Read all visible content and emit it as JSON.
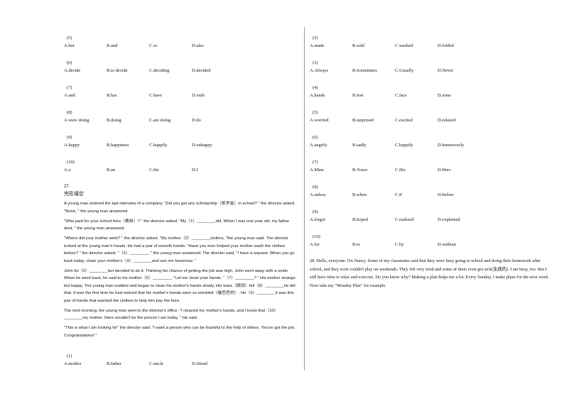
{
  "left_questions": [
    {
      "num": "(5)",
      "options": [
        "A.but",
        "B.and",
        "C.or",
        "D.also"
      ]
    },
    {
      "num": "(6)",
      "options": [
        "A.decide",
        "B.to decide",
        "C.deciding",
        "D.decided"
      ]
    },
    {
      "num": "(7)",
      "options": [
        "A.and",
        "B.has",
        "C.have",
        "D.with"
      ]
    },
    {
      "num": "(8)",
      "options": [
        "A.were doing",
        "B.doing",
        "C.are doing",
        "D.do"
      ]
    },
    {
      "num": "(9)",
      "options": [
        "A.happy",
        "B.happiness",
        "C.happily",
        "D.unhappy"
      ]
    },
    {
      "num": "(10)",
      "options": [
        "A.a",
        "B.an",
        "C.the",
        "D.I"
      ]
    }
  ],
  "q27": {
    "number": "27.",
    "title": "完形填空",
    "paragraphs": [
      "A young man entered the last interview of a company. \"Did you get any scholarship（奖学金）in school? \" the director asked. \"None, \" the young man answered.",
      "\"Who paid for your school fees（费用）? \" the director asked. \"My（1）________did. When I was one year old, my father died, \" the young man answered.",
      "\"Where did your mother work? \" the director asked. \"My mother（2）________clothes, \"the young man said. The director looked at the young man's hands. He had a pair of smooth hands. \"Have you ever helped your mother wash the clothes before? \" the director asked. \"（3）________. \" the young man answered. The director said, \"I have a request. When you go back today, clean your mother's（4）________and see me tomorrow. \"",
      "John fel（5）________but decided to do it. Thinking his chance of getting the job was high, John went away with a smile. When he went back, he said to his mother（6）________, \"Let me clean your hands. \"（7）________? \" His mother strange but happy. The young man nodded and began to clean his mother's hands slowly. His tears（眼泪）fell（8）________he did that. It was the first time he had noticed that his mother's hands were so wrinkled（皱巴巴的）. He（9）________it was this pair of hands that washed the clothes to help him pay the fees.",
      "The next morning, the young man went to the director's office. \"I cleaned my mother's hands, and I know that（10）________my mother, there wouldn't be the person I am today. \" He said.",
      "\"This is what I am looking for\" the director said. \"I want a person who can be thankful to the help of others. You've got the job. Congratulations! \""
    ],
    "q1": {
      "num": "(1)",
      "options": [
        "A.mother",
        "B.father",
        "C.uncle",
        "D.friend"
      ]
    }
  },
  "right_questions": [
    {
      "num": "(2)",
      "options": [
        "A.made",
        "B.sold",
        "C.washed",
        "D.folded"
      ]
    },
    {
      "num": "(3)",
      "options": [
        "A.Always",
        "B.Sometimes",
        "C.Usually",
        "D.Never"
      ]
    },
    {
      "num": "(4)",
      "options": [
        "A.hands",
        "B.feet",
        "C.face",
        "D.arms"
      ]
    },
    {
      "num": "(5)",
      "options": [
        "A.worried",
        "B.surprised",
        "C.excited",
        "D.relaxed"
      ]
    },
    {
      "num": "(6)",
      "options": [
        "A.angrily",
        "B.sadly",
        "C.happily",
        "D.humorously"
      ]
    },
    {
      "num": "(7)",
      "options": [
        "A.Mine",
        "B.Yours",
        "C.His",
        "D.Hers"
      ]
    },
    {
      "num": "(8)",
      "options": [
        "A.unless",
        "B.when",
        "C.if",
        "D.before"
      ]
    },
    {
      "num": "(9)",
      "options": [
        "A.forgot",
        "B.hoped",
        "C.realized",
        "D.explained"
      ]
    },
    {
      "num": "(10)",
      "options": [
        "A.for",
        "B.to",
        "C.by",
        "D.without"
      ]
    }
  ],
  "q28": {
    "text": "28.    Hello,  everyone. I'm Nancy. Some of  my classmates said that they were busy going to school and doing their homework  after school, and they even couldn't play on weekends. They felt very tired and  some of them even got sick(生病的). I am busy, too. But I  still  have time to relax and exercise. Do you know why? Making a plan helps me  a lot. Every Sunday, I make plans for the next week. Now take my \"Monday Plan\"  for example."
  }
}
